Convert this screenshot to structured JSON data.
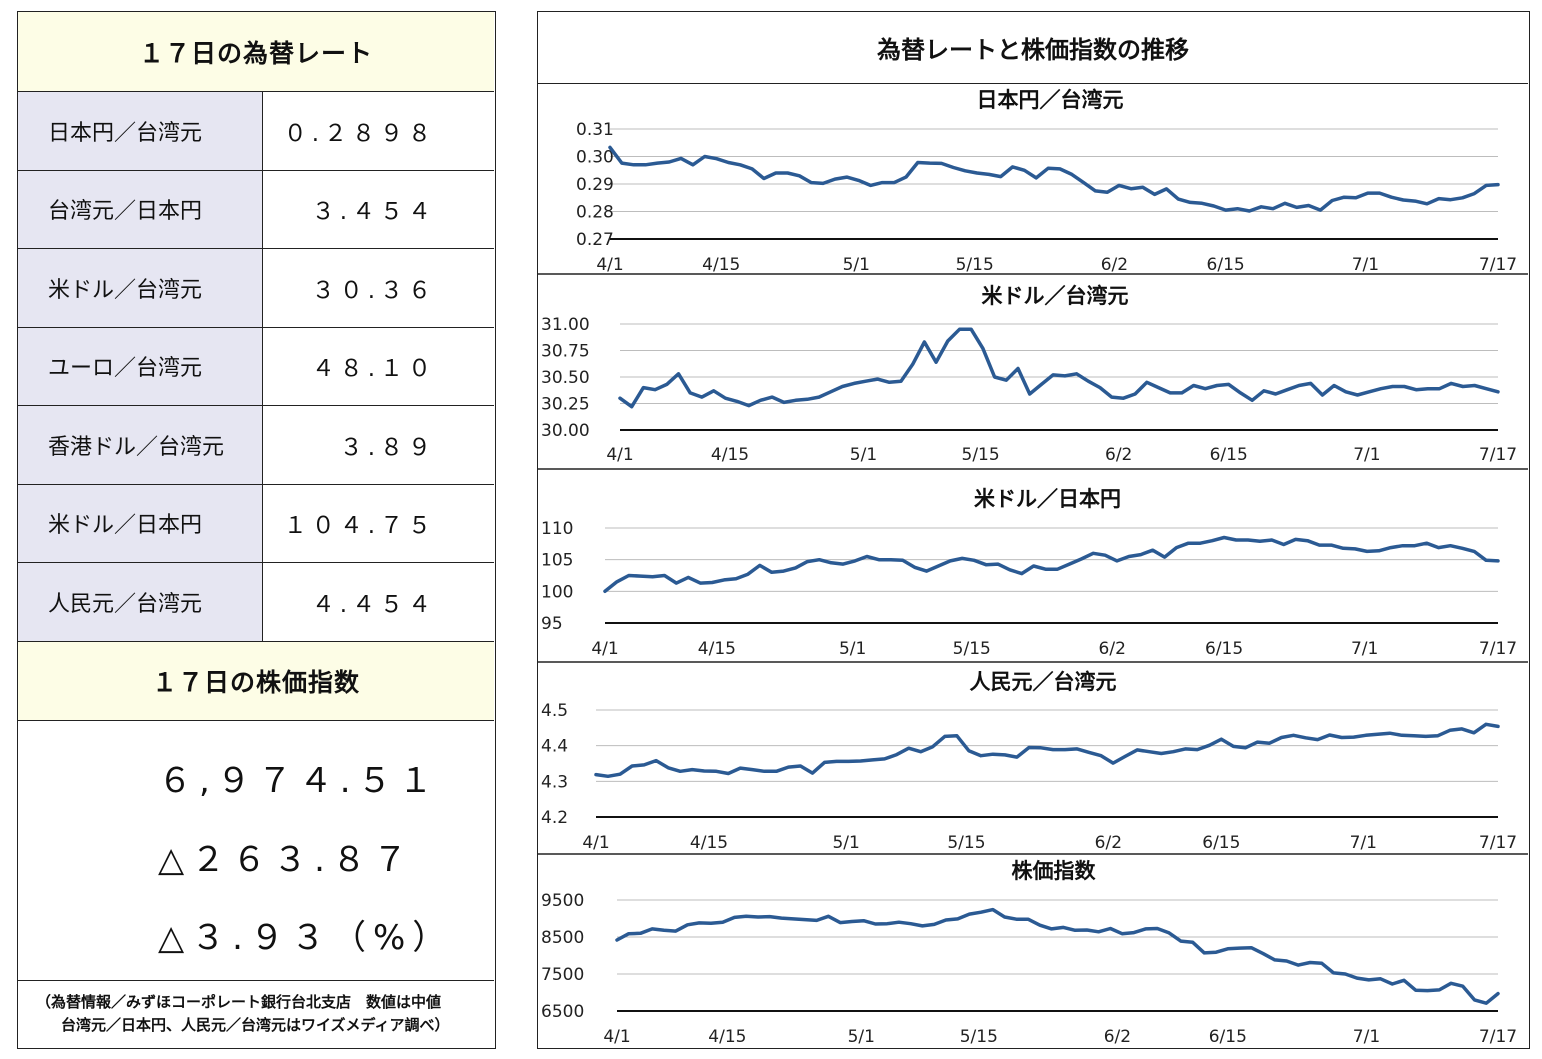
{
  "left_panel": {
    "rates_title": "１７日の為替レート",
    "rates": [
      {
        "label": "日本円／台湾元",
        "value": "０.２８９８"
      },
      {
        "label": "台湾元／日本円",
        "value": "３.４５４"
      },
      {
        "label": "米ドル／台湾元",
        "value": "３０.３６"
      },
      {
        "label": "ユーロ／台湾元",
        "value": "４８.１０"
      },
      {
        "label": "香港ドル／台湾元",
        "value": "３.８９"
      },
      {
        "label": "米ドル／日本円",
        "value": "１０４.７５"
      },
      {
        "label": "人民元／台湾元",
        "value": "４.４５４"
      }
    ],
    "index_title": "１７日の株価指数",
    "index_value": "６,９７４.５１",
    "index_change": "△２６３.８７",
    "index_change_pct": "△３.９３（%）",
    "note_line1": "（為替情報／みずほコーポレート銀行台北支店　数値は中値",
    "note_line2": "台湾元／日本円、人民元／台湾元はワイズメディア調べ）"
  },
  "right_panel": {
    "title": "為替レートと株価指数の推移"
  },
  "chart_data": [
    {
      "type": "line",
      "title": "日本円／台湾元",
      "x_ticks": [
        "4/1",
        "4/15",
        "5/1",
        "5/15",
        "6/2",
        "6/15",
        "7/1",
        "7/17"
      ],
      "y_ticks": [
        "0.31",
        "0.30",
        "0.29",
        "0.28",
        "0.27"
      ],
      "ylim": [
        0.27,
        0.31
      ],
      "color": "#2b5a93",
      "values": [
        0.3033,
        0.2976,
        0.297,
        0.297,
        0.2976,
        0.298,
        0.2993,
        0.297,
        0.3,
        0.2992,
        0.2978,
        0.297,
        0.2955,
        0.292,
        0.294,
        0.294,
        0.293,
        0.2905,
        0.2902,
        0.2918,
        0.2925,
        0.2913,
        0.2895,
        0.2905,
        0.2905,
        0.2925,
        0.2978,
        0.2976,
        0.2975,
        0.296,
        0.2948,
        0.294,
        0.2935,
        0.2927,
        0.2962,
        0.295,
        0.2922,
        0.2957,
        0.2955,
        0.2935,
        0.2905,
        0.2875,
        0.287,
        0.2895,
        0.2883,
        0.2888,
        0.2862,
        0.2882,
        0.2845,
        0.2833,
        0.283,
        0.282,
        0.2805,
        0.281,
        0.2802,
        0.2817,
        0.281,
        0.283,
        0.2815,
        0.2822,
        0.2805,
        0.284,
        0.2852,
        0.285,
        0.2867,
        0.2867,
        0.2852,
        0.2842,
        0.2838,
        0.2828,
        0.2847,
        0.2843,
        0.285,
        0.2865,
        0.2895,
        0.2898
      ]
    },
    {
      "type": "line",
      "title": "米ドル／台湾元",
      "x_ticks": [
        "4/1",
        "4/15",
        "5/1",
        "5/15",
        "6/2",
        "6/15",
        "7/1",
        "7/17"
      ],
      "y_ticks": [
        "31.00",
        "30.75",
        "30.50",
        "30.25",
        "30.00"
      ],
      "ylim": [
        30.0,
        31.0
      ],
      "color": "#2b5a93",
      "values": [
        30.3,
        30.22,
        30.4,
        30.38,
        30.43,
        30.53,
        30.35,
        30.31,
        30.37,
        30.3,
        30.27,
        30.23,
        30.28,
        30.31,
        30.26,
        30.28,
        30.29,
        30.31,
        30.36,
        30.41,
        30.44,
        30.46,
        30.48,
        30.45,
        30.46,
        30.62,
        30.83,
        30.64,
        30.84,
        30.95,
        30.95,
        30.77,
        30.5,
        30.47,
        30.58,
        30.34,
        30.43,
        30.52,
        30.51,
        30.53,
        30.46,
        30.4,
        30.31,
        30.3,
        30.34,
        30.45,
        30.4,
        30.35,
        30.35,
        30.42,
        30.39,
        30.42,
        30.43,
        30.35,
        30.28,
        30.37,
        30.34,
        30.38,
        30.42,
        30.44,
        30.33,
        30.42,
        30.36,
        30.33,
        30.36,
        30.39,
        30.41,
        30.41,
        30.38,
        30.39,
        30.39,
        30.44,
        30.41,
        30.42,
        30.39,
        30.36
      ]
    },
    {
      "type": "line",
      "title": "米ドル／日本円",
      "x_ticks": [
        "4/1",
        "4/15",
        "5/1",
        "5/15",
        "6/2",
        "6/15",
        "7/1",
        "7/17"
      ],
      "y_ticks": [
        "110",
        "105",
        "100",
        "95"
      ],
      "ylim": [
        95,
        110
      ],
      "color": "#2b5a93",
      "values": [
        100.0,
        101.5,
        102.5,
        102.4,
        102.3,
        102.5,
        101.3,
        102.2,
        101.3,
        101.4,
        101.8,
        102.0,
        102.7,
        104.1,
        103.0,
        103.2,
        103.7,
        104.7,
        105.0,
        104.5,
        104.3,
        104.8,
        105.5,
        105.0,
        105.0,
        104.9,
        103.8,
        103.2,
        104.0,
        104.8,
        105.2,
        104.9,
        104.2,
        104.3,
        103.4,
        102.8,
        104.0,
        103.5,
        103.5,
        104.3,
        105.1,
        106.0,
        105.7,
        104.8,
        105.5,
        105.8,
        106.5,
        105.4,
        106.9,
        107.6,
        107.6,
        108.0,
        108.5,
        108.1,
        108.1,
        107.9,
        108.1,
        107.4,
        108.2,
        108.0,
        107.3,
        107.3,
        106.8,
        106.7,
        106.3,
        106.4,
        106.9,
        107.2,
        107.2,
        107.6,
        106.9,
        107.2,
        106.8,
        106.3,
        104.9,
        104.8
      ]
    },
    {
      "type": "line",
      "title": "人民元／台湾元",
      "x_ticks": [
        "4/1",
        "4/15",
        "5/1",
        "5/15",
        "6/2",
        "6/15",
        "7/1",
        "7/17"
      ],
      "y_ticks": [
        "4.5",
        "4.4",
        "4.3",
        "4.2"
      ],
      "ylim": [
        4.2,
        4.5
      ],
      "color": "#2b5a93",
      "values": [
        4.319,
        4.314,
        4.32,
        4.343,
        4.346,
        4.358,
        4.338,
        4.328,
        4.333,
        4.329,
        4.328,
        4.322,
        4.337,
        4.333,
        4.328,
        4.328,
        4.34,
        4.343,
        4.323,
        4.353,
        4.356,
        4.356,
        4.357,
        4.36,
        4.363,
        4.375,
        4.393,
        4.383,
        4.397,
        4.426,
        4.428,
        4.386,
        4.372,
        4.376,
        4.374,
        4.368,
        4.395,
        4.394,
        4.389,
        4.389,
        4.391,
        4.381,
        4.372,
        4.351,
        4.37,
        4.388,
        4.383,
        4.378,
        4.383,
        4.391,
        4.389,
        4.401,
        4.418,
        4.398,
        4.394,
        4.41,
        4.407,
        4.423,
        4.429,
        4.422,
        4.417,
        4.43,
        4.423,
        4.424,
        4.429,
        4.432,
        4.435,
        4.429,
        4.428,
        4.426,
        4.428,
        4.443,
        4.447,
        4.436,
        4.46,
        4.454
      ]
    },
    {
      "type": "line",
      "title": "株価指数",
      "x_ticks": [
        "4/1",
        "4/15",
        "5/1",
        "5/15",
        "6/2",
        "6/15",
        "7/1",
        "7/17"
      ],
      "y_ticks": [
        "9500",
        "8500",
        "7500",
        "6500"
      ],
      "ylim": [
        6500,
        9500
      ],
      "color": "#2b5a93",
      "values": [
        8420,
        8590,
        8600,
        8720,
        8680,
        8660,
        8830,
        8880,
        8870,
        8900,
        9030,
        9060,
        9040,
        9050,
        9010,
        8990,
        8970,
        8950,
        9060,
        8890,
        8920,
        8940,
        8850,
        8860,
        8900,
        8860,
        8800,
        8840,
        8960,
        8990,
        9120,
        9170,
        9240,
        9040,
        8980,
        8980,
        8820,
        8720,
        8760,
        8680,
        8690,
        8640,
        8730,
        8590,
        8620,
        8720,
        8730,
        8610,
        8390,
        8360,
        8070,
        8090,
        8180,
        8200,
        8210,
        8050,
        7880,
        7850,
        7740,
        7810,
        7790,
        7530,
        7500,
        7390,
        7340,
        7370,
        7230,
        7330,
        7060,
        7050,
        7070,
        7250,
        7170,
        6800,
        6710,
        6970
      ]
    }
  ]
}
